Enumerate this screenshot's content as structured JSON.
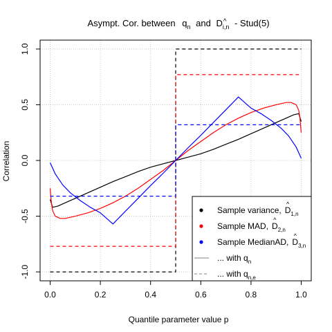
{
  "chart_data": {
    "type": "line",
    "title": {
      "prefix": "Asympt. Cor. between",
      "q_base": "q",
      "q_hat": "^",
      "q_sub": "n",
      "and": "and",
      "d_base": "D",
      "d_hat": "^",
      "d_sub": "i,n",
      "suffix": "- Stud(5)"
    },
    "xlabel": "Quantile parameter value p",
    "ylabel": "Correlation",
    "xlim": [
      0,
      1
    ],
    "ylim": [
      -1,
      1
    ],
    "xticks": [
      0.0,
      0.2,
      0.4,
      0.6,
      0.8,
      1.0
    ],
    "xtick_labels": [
      "0.0",
      "0.2",
      "0.4",
      "0.6",
      "0.8",
      "1.0"
    ],
    "yticks": [
      -1.0,
      -0.5,
      0.0,
      0.5,
      1.0
    ],
    "ytick_labels": [
      "-1.0",
      "-0.5",
      "0.0",
      "0.5",
      "1.0"
    ],
    "grid": true,
    "legend_position": "bottom-right",
    "legend": {
      "items": [
        {
          "marker": "dot",
          "color": "#000000",
          "text": "Sample variance,",
          "sym_base": "D",
          "sym_hat": "^",
          "sym_sub": "1,n"
        },
        {
          "marker": "dot",
          "color": "#ff0000",
          "text": "Sample MAD,",
          "sym_base": "D",
          "sym_hat": "^",
          "sym_sub": "2,n"
        },
        {
          "marker": "dot",
          "color": "#0000ff",
          "text": "Sample MedianAD,",
          "sym_base": "D",
          "sym_hat": "^",
          "sym_sub": "3,n"
        },
        {
          "marker": "solid",
          "color": "#808080",
          "text": "... with q",
          "sym_sub": "n"
        },
        {
          "marker": "dashed",
          "color": "#808080",
          "text": "... with q",
          "sym_sub": "n,e"
        }
      ]
    },
    "series": [
      {
        "color": "#000000",
        "style": "solid",
        "x": [
          0.0,
          0.01,
          0.03,
          0.06,
          0.1,
          0.15,
          0.2,
          0.25,
          0.3,
          0.35,
          0.4,
          0.45,
          0.5,
          0.55,
          0.6,
          0.65,
          0.7,
          0.75,
          0.8,
          0.85,
          0.9,
          0.94,
          0.97,
          0.99,
          1.0
        ],
        "y": [
          -0.35,
          -0.42,
          -0.41,
          -0.38,
          -0.34,
          -0.29,
          -0.24,
          -0.19,
          -0.145,
          -0.1,
          -0.06,
          -0.03,
          0.0,
          0.03,
          0.06,
          0.1,
          0.145,
          0.19,
          0.24,
          0.29,
          0.34,
          0.38,
          0.41,
          0.42,
          0.35
        ]
      },
      {
        "color": "#ff0000",
        "style": "solid",
        "x": [
          0.0,
          0.005,
          0.01,
          0.02,
          0.04,
          0.06,
          0.08,
          0.1,
          0.15,
          0.2,
          0.25,
          0.3,
          0.35,
          0.4,
          0.45,
          0.5,
          0.55,
          0.6,
          0.65,
          0.7,
          0.75,
          0.8,
          0.85,
          0.9,
          0.92,
          0.94,
          0.96,
          0.98,
          0.99,
          0.995,
          1.0
        ],
        "y": [
          -0.25,
          -0.38,
          -0.45,
          -0.5,
          -0.52,
          -0.52,
          -0.51,
          -0.5,
          -0.47,
          -0.43,
          -0.38,
          -0.32,
          -0.25,
          -0.17,
          -0.09,
          0.0,
          0.09,
          0.17,
          0.25,
          0.32,
          0.38,
          0.43,
          0.47,
          0.5,
          0.51,
          0.52,
          0.52,
          0.5,
          0.45,
          0.38,
          0.25
        ]
      },
      {
        "color": "#0000ff",
        "style": "solid",
        "x": [
          0.0,
          0.02,
          0.05,
          0.08,
          0.12,
          0.16,
          0.2,
          0.25,
          0.3,
          0.35,
          0.4,
          0.45,
          0.5,
          0.55,
          0.6,
          0.65,
          0.7,
          0.75,
          0.8,
          0.84,
          0.88,
          0.92,
          0.95,
          0.98,
          1.0
        ],
        "y": [
          -0.02,
          -0.12,
          -0.22,
          -0.29,
          -0.36,
          -0.42,
          -0.47,
          -0.57,
          -0.455,
          -0.34,
          -0.225,
          -0.115,
          0.0,
          0.115,
          0.225,
          0.34,
          0.455,
          0.57,
          0.47,
          0.42,
          0.36,
          0.29,
          0.22,
          0.12,
          0.02
        ]
      },
      {
        "color": "#000000",
        "style": "dashed",
        "x": [
          0.0,
          0.5,
          0.5,
          1.0
        ],
        "y": [
          -1.0,
          -1.0,
          1.0,
          1.0
        ]
      },
      {
        "color": "#ff0000",
        "style": "dashed",
        "x": [
          0.0,
          0.5,
          0.5,
          1.0
        ],
        "y": [
          -0.77,
          -0.77,
          0.77,
          0.77
        ]
      },
      {
        "color": "#0000ff",
        "style": "dashed",
        "x": [
          0.0,
          0.5,
          0.5,
          1.0
        ],
        "y": [
          -0.32,
          -0.32,
          0.32,
          0.32
        ]
      }
    ]
  }
}
